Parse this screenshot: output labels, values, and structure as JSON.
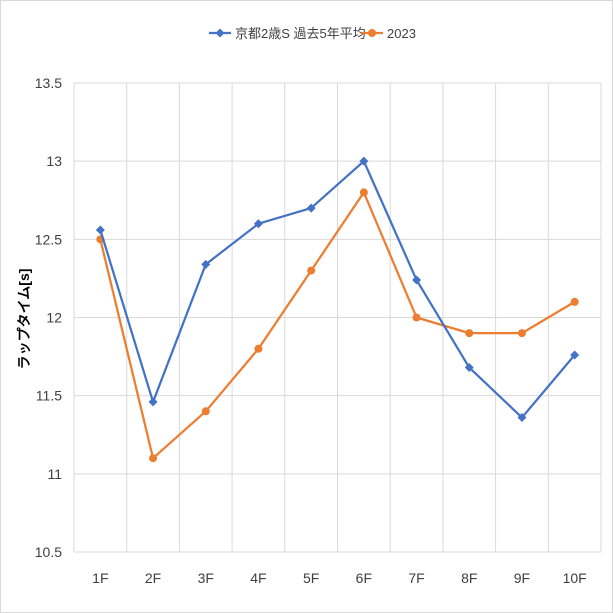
{
  "chart_data": {
    "type": "line",
    "title": "",
    "xlabel": "",
    "ylabel": "ラップタイム[s]",
    "categories": [
      "1F",
      "2F",
      "3F",
      "4F",
      "5F",
      "6F",
      "7F",
      "8F",
      "9F",
      "10F"
    ],
    "ylim": [
      10.5,
      13.5
    ],
    "yticks": [
      "10.5",
      "11",
      "11.5",
      "12",
      "12.5",
      "13",
      "13.5"
    ],
    "grid": true,
    "legend_position": "top",
    "series": [
      {
        "name": "京都2歳S 過去5年平均",
        "color": "#4472c4",
        "marker": "diamond",
        "values": [
          12.56,
          11.46,
          12.34,
          12.6,
          12.7,
          13.0,
          12.24,
          11.68,
          11.36,
          11.76
        ]
      },
      {
        "name": "2023",
        "color": "#ed7d31",
        "marker": "circle",
        "values": [
          12.5,
          11.1,
          11.4,
          11.8,
          12.3,
          12.8,
          12.0,
          11.9,
          11.9,
          12.1
        ]
      }
    ]
  }
}
